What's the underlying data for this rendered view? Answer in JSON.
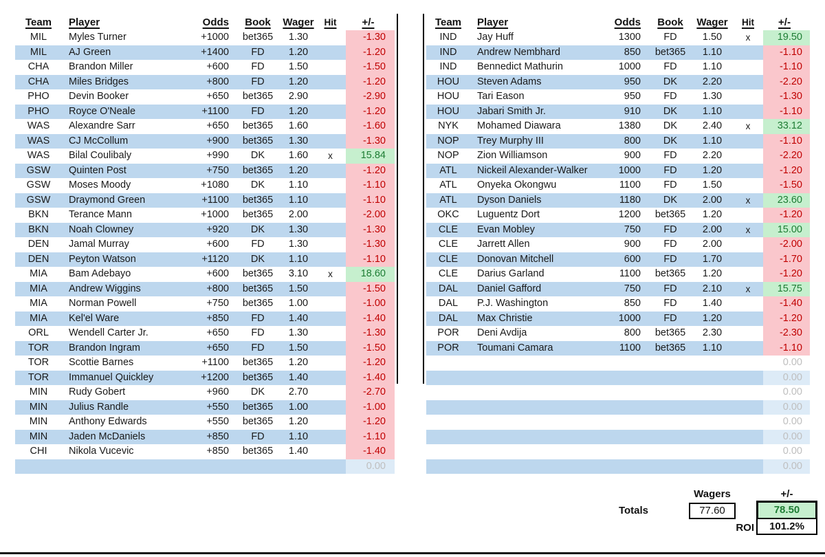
{
  "colors": {
    "row_blue": "#BDD7EE",
    "pm_empty_blue": "#DDEBF7",
    "negative_bg": "#FAC7CC",
    "negative_text": "#C00000",
    "positive_bg": "#C6EFCE",
    "positive_text": "#1E7D34",
    "zero_text": "#BFBFBF"
  },
  "tables": {
    "left": {
      "headers": [
        "Team",
        "Player",
        "Odds",
        "Book",
        "Wager",
        "Hit",
        "+/-"
      ],
      "rows": [
        {
          "team": "MIL",
          "player": "Myles Turner",
          "odds": "+1000",
          "book": "bet365",
          "wager": "1.30",
          "hit": "",
          "pm": "-1.30"
        },
        {
          "team": "MIL",
          "player": "AJ Green",
          "odds": "+1400",
          "book": "FD",
          "wager": "1.20",
          "hit": "",
          "pm": "-1.20"
        },
        {
          "team": "CHA",
          "player": "Brandon Miller",
          "odds": "+600",
          "book": "FD",
          "wager": "1.50",
          "hit": "",
          "pm": "-1.50"
        },
        {
          "team": "CHA",
          "player": "Miles Bridges",
          "odds": "+800",
          "book": "FD",
          "wager": "1.20",
          "hit": "",
          "pm": "-1.20"
        },
        {
          "team": "PHO",
          "player": "Devin Booker",
          "odds": "+650",
          "book": "bet365",
          "wager": "2.90",
          "hit": "",
          "pm": "-2.90"
        },
        {
          "team": "PHO",
          "player": "Royce O'Neale",
          "odds": "+1100",
          "book": "FD",
          "wager": "1.20",
          "hit": "",
          "pm": "-1.20"
        },
        {
          "team": "WAS",
          "player": "Alexandre Sarr",
          "odds": "+650",
          "book": "bet365",
          "wager": "1.60",
          "hit": "",
          "pm": "-1.60"
        },
        {
          "team": "WAS",
          "player": "CJ McCollum",
          "odds": "+900",
          "book": "bet365",
          "wager": "1.30",
          "hit": "",
          "pm": "-1.30"
        },
        {
          "team": "WAS",
          "player": "Bilal Coulibaly",
          "odds": "+990",
          "book": "DK",
          "wager": "1.60",
          "hit": "x",
          "pm": "15.84"
        },
        {
          "team": "GSW",
          "player": "Quinten Post",
          "odds": "+750",
          "book": "bet365",
          "wager": "1.20",
          "hit": "",
          "pm": "-1.20"
        },
        {
          "team": "GSW",
          "player": "Moses Moody",
          "odds": "+1080",
          "book": "DK",
          "wager": "1.10",
          "hit": "",
          "pm": "-1.10"
        },
        {
          "team": "GSW",
          "player": "Draymond Green",
          "odds": "+1100",
          "book": "bet365",
          "wager": "1.10",
          "hit": "",
          "pm": "-1.10"
        },
        {
          "team": "BKN",
          "player": "Terance Mann",
          "odds": "+1000",
          "book": "bet365",
          "wager": "2.00",
          "hit": "",
          "pm": "-2.00"
        },
        {
          "team": "BKN",
          "player": "Noah Clowney",
          "odds": "+920",
          "book": "DK",
          "wager": "1.30",
          "hit": "",
          "pm": "-1.30"
        },
        {
          "team": "DEN",
          "player": "Jamal Murray",
          "odds": "+600",
          "book": "FD",
          "wager": "1.30",
          "hit": "",
          "pm": "-1.30"
        },
        {
          "team": "DEN",
          "player": "Peyton Watson",
          "odds": "+1120",
          "book": "DK",
          "wager": "1.10",
          "hit": "",
          "pm": "-1.10"
        },
        {
          "team": "MIA",
          "player": "Bam Adebayo",
          "odds": "+600",
          "book": "bet365",
          "wager": "3.10",
          "hit": "x",
          "pm": "18.60"
        },
        {
          "team": "MIA",
          "player": "Andrew Wiggins",
          "odds": "+800",
          "book": "bet365",
          "wager": "1.50",
          "hit": "",
          "pm": "-1.50"
        },
        {
          "team": "MIA",
          "player": "Norman Powell",
          "odds": "+750",
          "book": "bet365",
          "wager": "1.00",
          "hit": "",
          "pm": "-1.00"
        },
        {
          "team": "MIA",
          "player": "Kel'el Ware",
          "odds": "+850",
          "book": "FD",
          "wager": "1.40",
          "hit": "",
          "pm": "-1.40"
        },
        {
          "team": "ORL",
          "player": "Wendell Carter Jr.",
          "odds": "+650",
          "book": "FD",
          "wager": "1.30",
          "hit": "",
          "pm": "-1.30"
        },
        {
          "team": "TOR",
          "player": "Brandon Ingram",
          "odds": "+650",
          "book": "FD",
          "wager": "1.50",
          "hit": "",
          "pm": "-1.50"
        },
        {
          "team": "TOR",
          "player": "Scottie Barnes",
          "odds": "+1100",
          "book": "bet365",
          "wager": "1.20",
          "hit": "",
          "pm": "-1.20"
        },
        {
          "team": "TOR",
          "player": "Immanuel Quickley",
          "odds": "+1200",
          "book": "bet365",
          "wager": "1.40",
          "hit": "",
          "pm": "-1.40"
        },
        {
          "team": "MIN",
          "player": "Rudy Gobert",
          "odds": "+960",
          "book": "DK",
          "wager": "2.70",
          "hit": "",
          "pm": "-2.70"
        },
        {
          "team": "MIN",
          "player": "Julius Randle",
          "odds": "+550",
          "book": "bet365",
          "wager": "1.00",
          "hit": "",
          "pm": "-1.00"
        },
        {
          "team": "MIN",
          "player": "Anthony Edwards",
          "odds": "+550",
          "book": "bet365",
          "wager": "1.20",
          "hit": "",
          "pm": "-1.20"
        },
        {
          "team": "MIN",
          "player": "Jaden McDaniels",
          "odds": "+850",
          "book": "FD",
          "wager": "1.10",
          "hit": "",
          "pm": "-1.10"
        },
        {
          "team": "CHI",
          "player": "Nikola Vucevic",
          "odds": "+850",
          "book": "bet365",
          "wager": "1.40",
          "hit": "",
          "pm": "-1.40"
        },
        {
          "team": "",
          "player": "",
          "odds": "",
          "book": "",
          "wager": "",
          "hit": "",
          "pm": "0.00",
          "empty": true
        }
      ]
    },
    "right": {
      "headers": [
        "Team",
        "Player",
        "Odds",
        "Book",
        "Wager",
        "Hit",
        "+/-"
      ],
      "rows": [
        {
          "team": "IND",
          "player": "Jay Huff",
          "odds": "1300",
          "book": "FD",
          "wager": "1.50",
          "hit": "x",
          "pm": "19.50"
        },
        {
          "team": "IND",
          "player": "Andrew Nembhard",
          "odds": "850",
          "book": "bet365",
          "wager": "1.10",
          "hit": "",
          "pm": "-1.10"
        },
        {
          "team": "IND",
          "player": "Bennedict Mathurin",
          "odds": "1000",
          "book": "FD",
          "wager": "1.10",
          "hit": "",
          "pm": "-1.10"
        },
        {
          "team": "HOU",
          "player": "Steven Adams",
          "odds": "950",
          "book": "DK",
          "wager": "2.20",
          "hit": "",
          "pm": "-2.20"
        },
        {
          "team": "HOU",
          "player": "Tari Eason",
          "odds": "950",
          "book": "FD",
          "wager": "1.30",
          "hit": "",
          "pm": "-1.30"
        },
        {
          "team": "HOU",
          "player": "Jabari Smith Jr.",
          "odds": "910",
          "book": "DK",
          "wager": "1.10",
          "hit": "",
          "pm": "-1.10"
        },
        {
          "team": "NYK",
          "player": "Mohamed Diawara",
          "odds": "1380",
          "book": "DK",
          "wager": "2.40",
          "hit": "x",
          "pm": "33.12"
        },
        {
          "team": "NOP",
          "player": "Trey Murphy III",
          "odds": "800",
          "book": "DK",
          "wager": "1.10",
          "hit": "",
          "pm": "-1.10"
        },
        {
          "team": "NOP",
          "player": "Zion Williamson",
          "odds": "900",
          "book": "FD",
          "wager": "2.20",
          "hit": "",
          "pm": "-2.20"
        },
        {
          "team": "ATL",
          "player": "Nickeil Alexander-Walker",
          "odds": "1000",
          "book": "FD",
          "wager": "1.20",
          "hit": "",
          "pm": "-1.20"
        },
        {
          "team": "ATL",
          "player": "Onyeka Okongwu",
          "odds": "1100",
          "book": "FD",
          "wager": "1.50",
          "hit": "",
          "pm": "-1.50"
        },
        {
          "team": "ATL",
          "player": "Dyson Daniels",
          "odds": "1180",
          "book": "DK",
          "wager": "2.00",
          "hit": "x",
          "pm": "23.60"
        },
        {
          "team": "OKC",
          "player": "Luguentz Dort",
          "odds": "1200",
          "book": "bet365",
          "wager": "1.20",
          "hit": "",
          "pm": "-1.20"
        },
        {
          "team": "CLE",
          "player": "Evan Mobley",
          "odds": "750",
          "book": "FD",
          "wager": "2.00",
          "hit": "x",
          "pm": "15.00"
        },
        {
          "team": "CLE",
          "player": "Jarrett Allen",
          "odds": "900",
          "book": "FD",
          "wager": "2.00",
          "hit": "",
          "pm": "-2.00"
        },
        {
          "team": "CLE",
          "player": "Donovan Mitchell",
          "odds": "600",
          "book": "FD",
          "wager": "1.70",
          "hit": "",
          "pm": "-1.70"
        },
        {
          "team": "CLE",
          "player": "Darius Garland",
          "odds": "1100",
          "book": "bet365",
          "wager": "1.20",
          "hit": "",
          "pm": "-1.20"
        },
        {
          "team": "DAL",
          "player": "Daniel Gafford",
          "odds": "750",
          "book": "FD",
          "wager": "2.10",
          "hit": "x",
          "pm": "15.75"
        },
        {
          "team": "DAL",
          "player": "P.J. Washington",
          "odds": "850",
          "book": "FD",
          "wager": "1.40",
          "hit": "",
          "pm": "-1.40"
        },
        {
          "team": "DAL",
          "player": "Max Christie",
          "odds": "1000",
          "book": "FD",
          "wager": "1.20",
          "hit": "",
          "pm": "-1.20"
        },
        {
          "team": "POR",
          "player": "Deni Avdija",
          "odds": "800",
          "book": "bet365",
          "wager": "2.30",
          "hit": "",
          "pm": "-2.30"
        },
        {
          "team": "POR",
          "player": "Toumani Camara",
          "odds": "1100",
          "book": "bet365",
          "wager": "1.10",
          "hit": "",
          "pm": "-1.10"
        },
        {
          "team": "",
          "player": "",
          "odds": "",
          "book": "",
          "wager": "",
          "hit": "",
          "pm": "0.00",
          "empty": true
        },
        {
          "team": "",
          "player": "",
          "odds": "",
          "book": "",
          "wager": "",
          "hit": "",
          "pm": "0.00",
          "empty": true
        },
        {
          "team": "",
          "player": "",
          "odds": "",
          "book": "",
          "wager": "",
          "hit": "",
          "pm": "0.00",
          "empty": true
        },
        {
          "team": "",
          "player": "",
          "odds": "",
          "book": "",
          "wager": "",
          "hit": "",
          "pm": "0.00",
          "empty": true
        },
        {
          "team": "",
          "player": "",
          "odds": "",
          "book": "",
          "wager": "",
          "hit": "",
          "pm": "0.00",
          "empty": true
        },
        {
          "team": "",
          "player": "",
          "odds": "",
          "book": "",
          "wager": "",
          "hit": "",
          "pm": "0.00",
          "empty": true
        },
        {
          "team": "",
          "player": "",
          "odds": "",
          "book": "",
          "wager": "",
          "hit": "",
          "pm": "0.00",
          "empty": true
        },
        {
          "team": "",
          "player": "",
          "odds": "",
          "book": "",
          "wager": "",
          "hit": "",
          "pm": "0.00",
          "empty": true
        }
      ]
    }
  },
  "totals": {
    "wagers_label": "Wagers",
    "pm_label": "+/-",
    "totals_label": "Totals",
    "roi_label": "ROI",
    "wagers_value": "77.60",
    "pm_value": "78.50",
    "roi_value": "101.2%"
  }
}
